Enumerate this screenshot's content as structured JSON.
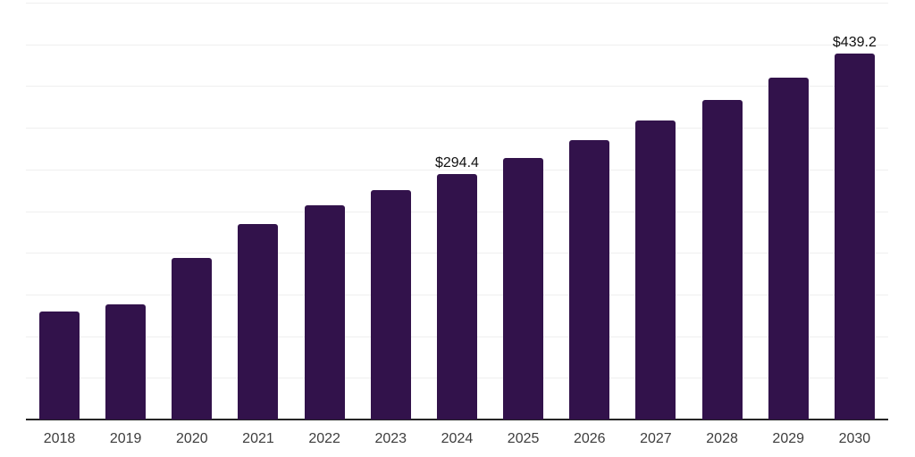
{
  "chart_data": {
    "type": "bar",
    "title": "",
    "xlabel": "",
    "ylabel": "",
    "categories": [
      "2018",
      "2019",
      "2020",
      "2021",
      "2022",
      "2023",
      "2024",
      "2025",
      "2026",
      "2027",
      "2028",
      "2029",
      "2030"
    ],
    "values": [
      129.5,
      138.3,
      193.4,
      234.1,
      257.2,
      274.8,
      294.4,
      313.9,
      335.2,
      358.2,
      383.0,
      409.6,
      439.2
    ],
    "value_labels": [
      null,
      null,
      null,
      null,
      null,
      null,
      "$294.4",
      null,
      null,
      null,
      null,
      null,
      "$439.2"
    ],
    "ylim": [
      0,
      500
    ],
    "gridline_step": 50,
    "grid": "horizontal-only",
    "legend": "none",
    "y_axis_tick_labels_visible": false
  },
  "colors": {
    "bar": "#32124b",
    "gridline": "#efefef",
    "axis_line": "#262626",
    "tick_label": "#3d3d3d",
    "value_label": "#111111",
    "background": "#ffffff"
  }
}
